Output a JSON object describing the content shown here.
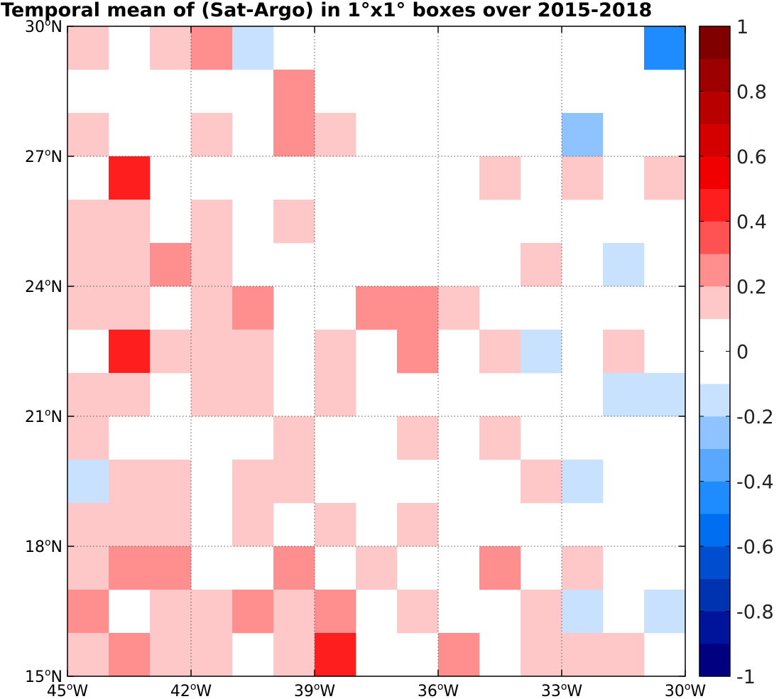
{
  "chart_data": {
    "type": "heatmap",
    "title": "Temporal mean of (Sat-Argo) in 1°x1° boxes over 2015-2018",
    "x": [
      -45,
      -44,
      -43,
      -42,
      -41,
      -40,
      -39,
      -38,
      -37,
      -36,
      -35,
      -34,
      -33,
      -32,
      -31
    ],
    "y": [
      29,
      28,
      27,
      26,
      25,
      24,
      23,
      22,
      21,
      20,
      19,
      18,
      17,
      16,
      15
    ],
    "xlim": [
      -45,
      -30
    ],
    "ylim": [
      15,
      30
    ],
    "x_ticks": [
      {
        "value": -45,
        "deg": "45",
        "hemi": "W"
      },
      {
        "value": -42,
        "deg": "42",
        "hemi": "W"
      },
      {
        "value": -39,
        "deg": "39",
        "hemi": "W"
      },
      {
        "value": -36,
        "deg": "36",
        "hemi": "W"
      },
      {
        "value": -33,
        "deg": "33",
        "hemi": "W"
      },
      {
        "value": -30,
        "deg": "30",
        "hemi": "W"
      }
    ],
    "y_ticks": [
      {
        "value": 30,
        "deg": "30",
        "hemi": "N"
      },
      {
        "value": 27,
        "deg": "27",
        "hemi": "N"
      },
      {
        "value": 24,
        "deg": "24",
        "hemi": "N"
      },
      {
        "value": 21,
        "deg": "21",
        "hemi": "N"
      },
      {
        "value": 18,
        "deg": "18",
        "hemi": "N"
      },
      {
        "value": 15,
        "deg": "15",
        "hemi": "N"
      }
    ],
    "grid": true,
    "values": [
      [
        0.15,
        null,
        0.15,
        0.25,
        -0.15,
        null,
        null,
        null,
        null,
        null,
        null,
        null,
        null,
        null,
        -0.45
      ],
      [
        null,
        null,
        null,
        null,
        null,
        0.25,
        null,
        null,
        null,
        null,
        null,
        null,
        null,
        null,
        null
      ],
      [
        0.15,
        null,
        null,
        0.15,
        null,
        0.25,
        0.15,
        null,
        null,
        null,
        null,
        null,
        -0.25,
        null,
        null
      ],
      [
        null,
        0.45,
        null,
        null,
        null,
        null,
        null,
        null,
        null,
        null,
        0.15,
        null,
        0.15,
        null,
        0.15
      ],
      [
        0.15,
        0.15,
        null,
        0.15,
        null,
        0.15,
        null,
        null,
        null,
        null,
        null,
        null,
        null,
        null,
        null
      ],
      [
        0.15,
        0.15,
        0.25,
        0.15,
        null,
        null,
        null,
        null,
        null,
        null,
        null,
        0.15,
        null,
        -0.15,
        null
      ],
      [
        0.15,
        0.15,
        null,
        0.15,
        0.25,
        null,
        null,
        0.25,
        0.25,
        0.15,
        null,
        null,
        null,
        null,
        null
      ],
      [
        null,
        0.45,
        0.15,
        0.15,
        0.15,
        null,
        0.15,
        null,
        0.25,
        null,
        0.15,
        -0.15,
        null,
        0.15,
        null
      ],
      [
        0.15,
        0.15,
        null,
        0.15,
        0.15,
        null,
        0.15,
        null,
        null,
        null,
        null,
        null,
        null,
        -0.15,
        -0.15
      ],
      [
        0.15,
        null,
        null,
        null,
        null,
        0.15,
        null,
        null,
        0.15,
        null,
        0.15,
        null,
        null,
        null,
        null
      ],
      [
        -0.15,
        0.15,
        0.15,
        null,
        0.15,
        0.15,
        null,
        null,
        null,
        null,
        null,
        0.15,
        -0.15,
        null,
        null
      ],
      [
        0.15,
        0.15,
        0.15,
        null,
        0.15,
        null,
        0.15,
        null,
        0.15,
        null,
        null,
        null,
        null,
        null,
        null
      ],
      [
        0.15,
        0.25,
        0.25,
        null,
        null,
        0.25,
        null,
        0.15,
        null,
        null,
        0.25,
        null,
        0.15,
        null,
        null
      ],
      [
        0.25,
        null,
        0.15,
        0.15,
        0.25,
        0.15,
        0.25,
        null,
        0.15,
        null,
        null,
        0.15,
        -0.15,
        null,
        -0.15
      ],
      [
        0.15,
        0.25,
        0.15,
        0.15,
        null,
        0.15,
        0.45,
        null,
        null,
        0.25,
        null,
        0.15,
        0.15,
        0.15,
        null
      ]
    ],
    "colorbar": {
      "range": [
        -1,
        1
      ],
      "ticks": [
        "-1",
        "-0.8",
        "-0.6",
        "-0.4",
        "-0.2",
        "0",
        "0.2",
        "0.4",
        "0.6",
        "0.8",
        "1"
      ],
      "tick_values": [
        -1,
        -0.8,
        -0.6,
        -0.4,
        -0.2,
        0,
        0.2,
        0.4,
        0.6,
        0.8,
        1
      ],
      "levels": [
        {
          "from": -1.0,
          "to": -0.9,
          "color": "#000080"
        },
        {
          "from": -0.9,
          "to": -0.8,
          "color": "#00139b"
        },
        {
          "from": -0.8,
          "to": -0.7,
          "color": "#0033b0"
        },
        {
          "from": -0.7,
          "to": -0.6,
          "color": "#004ed0"
        },
        {
          "from": -0.6,
          "to": -0.5,
          "color": "#006ef0"
        },
        {
          "from": -0.5,
          "to": -0.4,
          "color": "#1e8cff"
        },
        {
          "from": -0.4,
          "to": -0.3,
          "color": "#58a8ff"
        },
        {
          "from": -0.3,
          "to": -0.2,
          "color": "#8ec3ff"
        },
        {
          "from": -0.2,
          "to": -0.1,
          "color": "#c8e1ff"
        },
        {
          "from": -0.1,
          "to": 0.0,
          "color": "#ffffff"
        },
        {
          "from": 0.0,
          "to": 0.1,
          "color": "#ffffff"
        },
        {
          "from": 0.1,
          "to": 0.2,
          "color": "#ffc8c8"
        },
        {
          "from": 0.2,
          "to": 0.3,
          "color": "#ff8e8e"
        },
        {
          "from": 0.3,
          "to": 0.4,
          "color": "#ff5252"
        },
        {
          "from": 0.4,
          "to": 0.5,
          "color": "#ff1e1e"
        },
        {
          "from": 0.5,
          "to": 0.6,
          "color": "#f00000"
        },
        {
          "from": 0.6,
          "to": 0.7,
          "color": "#d40000"
        },
        {
          "from": 0.7,
          "to": 0.8,
          "color": "#b80000"
        },
        {
          "from": 0.8,
          "to": 0.9,
          "color": "#9c0000"
        },
        {
          "from": 0.9,
          "to": 1.0,
          "color": "#800000"
        }
      ]
    }
  }
}
